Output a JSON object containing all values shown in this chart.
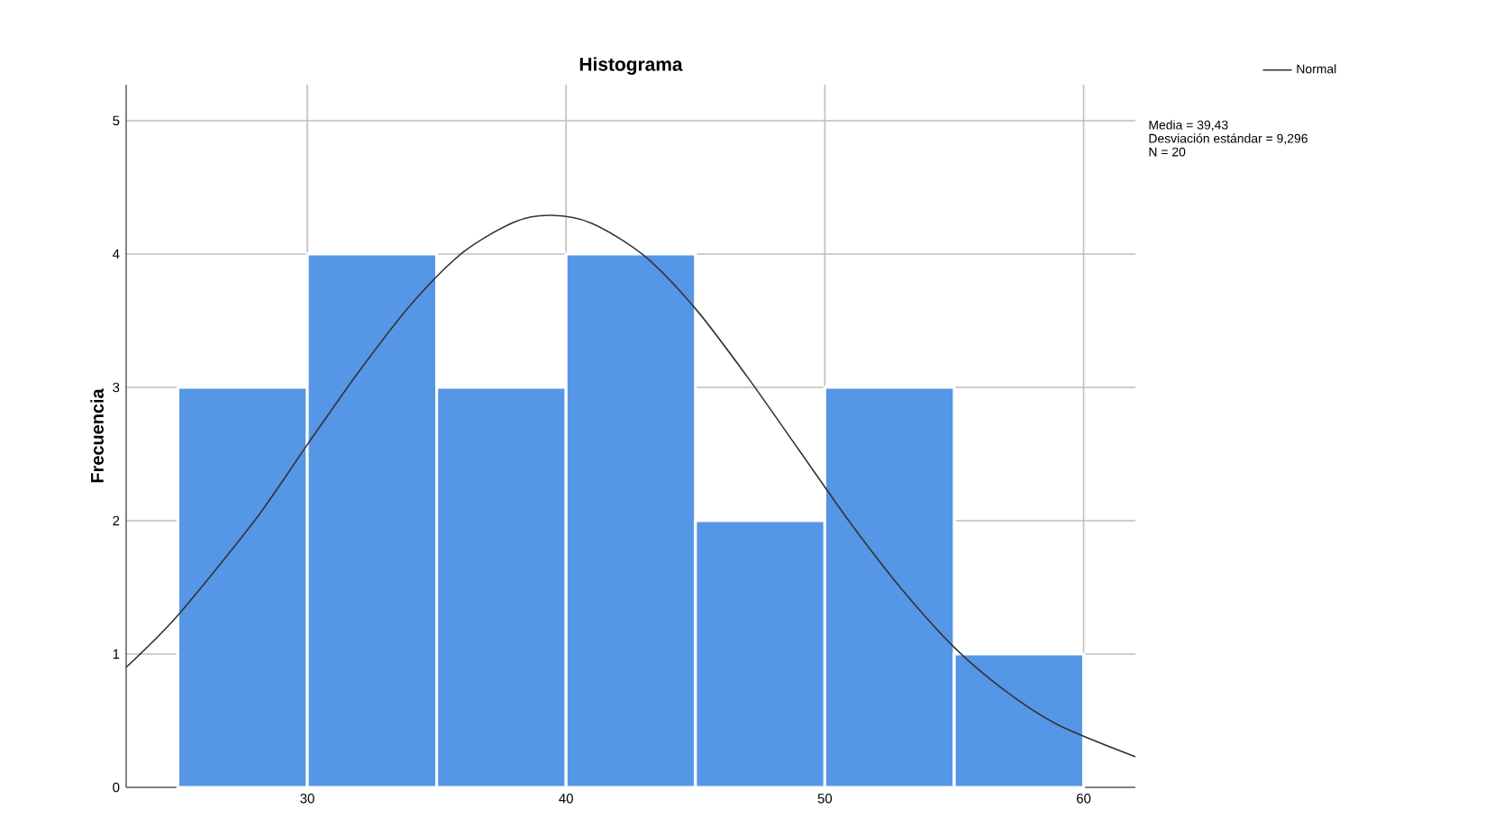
{
  "chart_data": {
    "type": "histogram",
    "title": "Histograma",
    "ylabel": "Frecuencia",
    "bins": [
      25,
      30,
      35,
      40,
      45,
      50,
      55,
      60
    ],
    "values": [
      3,
      4,
      3,
      4,
      2,
      3,
      1
    ],
    "color": "#5596e6",
    "series": [
      {
        "name": "Normal",
        "type": "line",
        "color": "#333333",
        "x": [
          23,
          25,
          28,
          30,
          32,
          34,
          36,
          38,
          39.43,
          41,
          43,
          45,
          47,
          49,
          51,
          53,
          55,
          57,
          59,
          62
        ],
        "values": [
          0.9,
          1.29,
          2.01,
          2.57,
          3.12,
          3.62,
          4.01,
          4.24,
          4.29,
          4.23,
          3.99,
          3.59,
          3.08,
          2.53,
          1.98,
          1.48,
          1.05,
          0.72,
          0.47,
          0.23
        ]
      }
    ],
    "xlim": [
      23,
      62
    ],
    "ylim": [
      0,
      5.27
    ],
    "xticks": [
      30,
      40,
      50,
      60
    ],
    "yticks": [
      0,
      1,
      2,
      3,
      4,
      5
    ],
    "grid": true,
    "legend": "top right",
    "annotations": [
      "Media = 39,43",
      "Desviación estándar = 9,296",
      "N = 20"
    ]
  }
}
